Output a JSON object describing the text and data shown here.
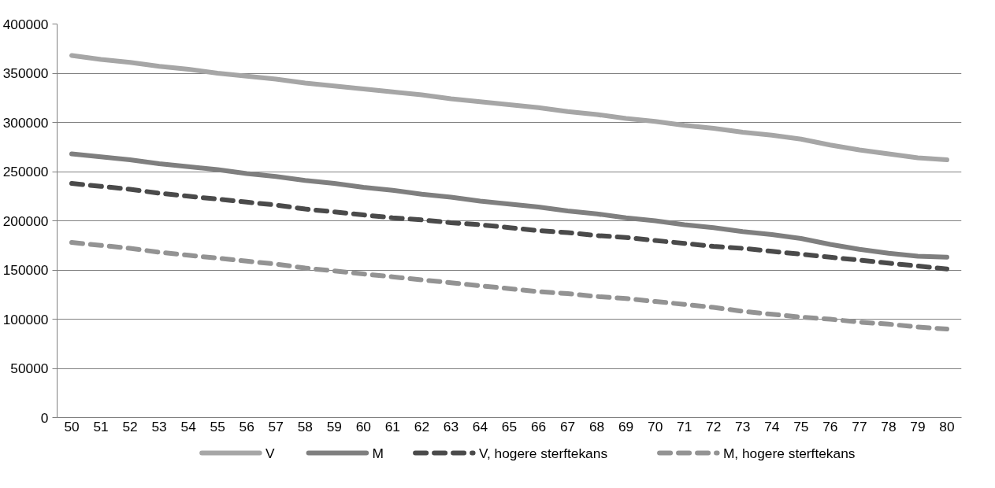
{
  "chart_data": {
    "type": "line",
    "categories": [
      "50",
      "51",
      "52",
      "53",
      "54",
      "55",
      "56",
      "57",
      "58",
      "59",
      "60",
      "61",
      "62",
      "63",
      "64",
      "65",
      "66",
      "67",
      "68",
      "69",
      "70",
      "71",
      "72",
      "73",
      "74",
      "75",
      "76",
      "77",
      "78",
      "79",
      "80"
    ],
    "ylim": [
      0,
      400000
    ],
    "yticks": [
      0,
      50000,
      100000,
      150000,
      200000,
      250000,
      300000,
      350000,
      400000
    ],
    "grid": "y",
    "legend": "bottom",
    "marker": "none",
    "series": [
      {
        "name": "V",
        "color": "#a6a6a6",
        "line_style": "solid",
        "values": [
          368000,
          364000,
          361000,
          357000,
          354000,
          350000,
          347000,
          344000,
          340000,
          337000,
          334000,
          331000,
          328000,
          324000,
          321000,
          318000,
          315000,
          311000,
          308000,
          304000,
          301000,
          297000,
          294000,
          290000,
          287000,
          283000,
          277000,
          272000,
          268000,
          264000,
          262000
        ]
      },
      {
        "name": "M",
        "color": "#7f7f7f",
        "line_style": "solid",
        "values": [
          268000,
          265000,
          262000,
          258000,
          255000,
          252000,
          248000,
          245000,
          241000,
          238000,
          234000,
          231000,
          227000,
          224000,
          220000,
          217000,
          214000,
          210000,
          207000,
          203000,
          200000,
          196000,
          193000,
          189000,
          186000,
          182000,
          176000,
          171000,
          167000,
          164000,
          163000
        ]
      },
      {
        "name": "V, hogere sterftekans",
        "color": "#4a4a4a",
        "line_style": "dashed",
        "values": [
          238000,
          235000,
          232000,
          228000,
          225000,
          222000,
          219000,
          216000,
          212000,
          209000,
          206000,
          203000,
          201000,
          198000,
          196000,
          193000,
          190000,
          188000,
          185000,
          183000,
          180000,
          177000,
          174000,
          172000,
          169000,
          166000,
          163000,
          160000,
          157000,
          154000,
          151000
        ]
      },
      {
        "name": "M, hogere sterftekans",
        "color": "#939393",
        "line_style": "dashed",
        "values": [
          178000,
          175000,
          172000,
          168000,
          165000,
          162000,
          159000,
          156000,
          152000,
          149000,
          146000,
          143000,
          140000,
          137000,
          134000,
          131000,
          128000,
          126000,
          123000,
          121000,
          118000,
          115000,
          112000,
          108000,
          105000,
          102000,
          100000,
          97000,
          95000,
          92000,
          90000
        ]
      }
    ]
  }
}
